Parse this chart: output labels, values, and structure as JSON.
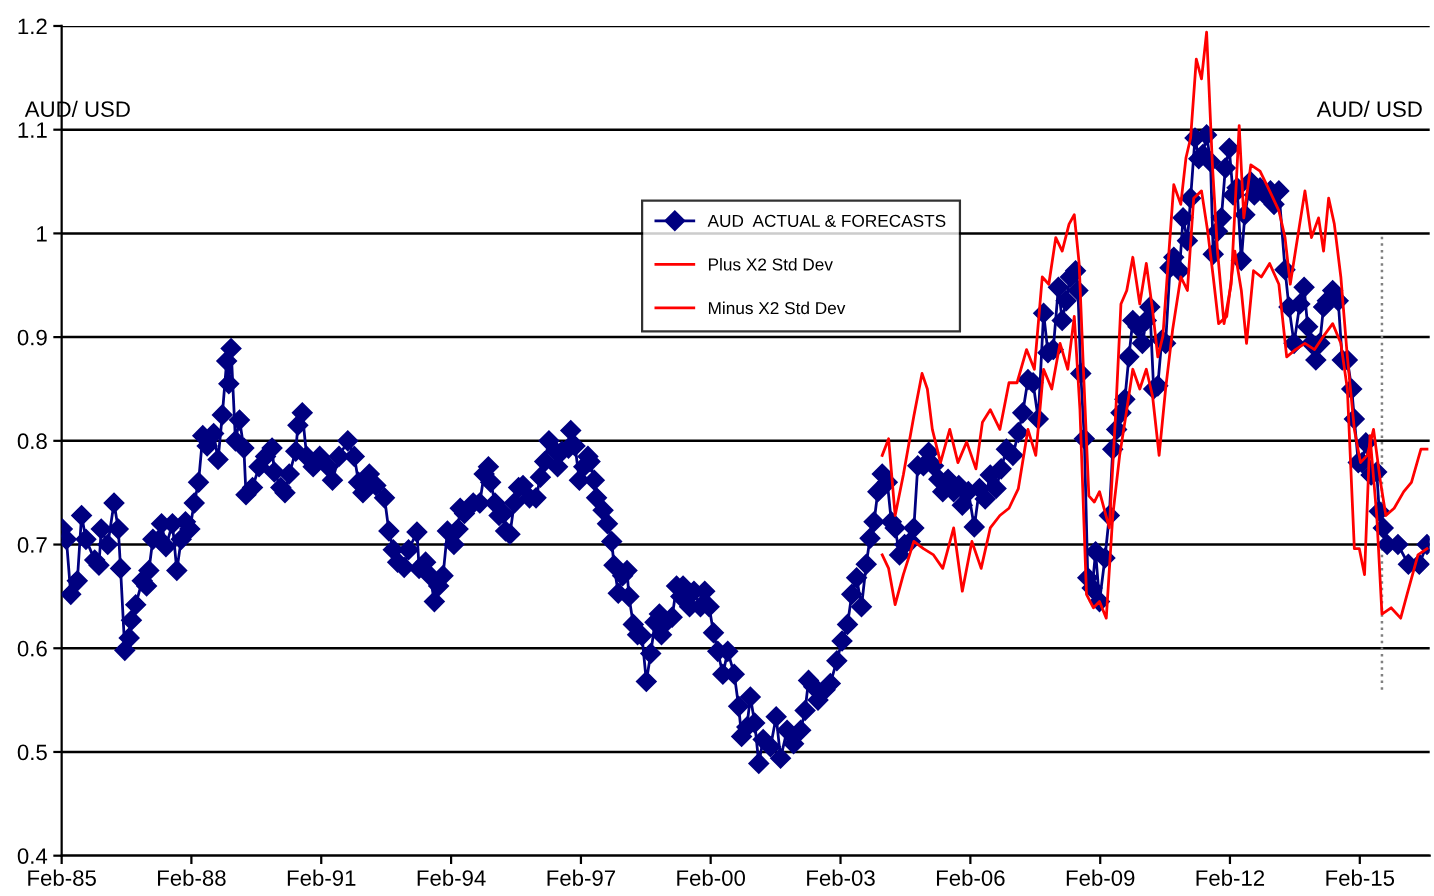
{
  "chart_data": {
    "type": "line",
    "ylim": [
      0.4,
      1.2
    ],
    "yticks": [
      0.4,
      0.5,
      0.6,
      0.7,
      0.8,
      0.9,
      1,
      1.1,
      1.2
    ],
    "xlim": [
      "1985-02-01",
      "2016-09-13"
    ],
    "xticks": [
      {
        "value": "1985-02-01",
        "label": "Feb-85"
      },
      {
        "value": "1988-02-01",
        "label": "Feb-88"
      },
      {
        "value": "1991-02-01",
        "label": "Feb-91"
      },
      {
        "value": "1994-02-01",
        "label": "Feb-94"
      },
      {
        "value": "1997-02-01",
        "label": "Feb-97"
      },
      {
        "value": "2000-02-01",
        "label": "Feb-00"
      },
      {
        "value": "2003-02-01",
        "label": "Feb-03"
      },
      {
        "value": "2006-02-01",
        "label": "Feb-06"
      },
      {
        "value": "2009-02-01",
        "label": "Feb-09"
      },
      {
        "value": "2012-02-01",
        "label": "Feb-12"
      },
      {
        "value": "2015-02-01",
        "label": "Feb-15"
      }
    ],
    "grid": "y",
    "legend": "top center",
    "annotations": [
      "AUD/ USD",
      "AUD/ USD"
    ],
    "ref_lines": [
      {
        "axis": "x",
        "value": "2015-08-07",
        "color": "#808080",
        "line_style": "dotted"
      }
    ],
    "series": [
      {
        "name": "AUD  ACTUAL & FORECASTS",
        "color": "#000080",
        "marker": "diamond",
        "line_style": "solid",
        "x": [
          "1985-02-07",
          "1985-03-13",
          "1985-04-19",
          "1985-06-13",
          "1985-07-19",
          "1985-08-25",
          "1985-11-07",
          "1985-12-13",
          "1986-01-01",
          "1986-02-25",
          "1986-04-19",
          "1986-05-25",
          "1986-06-13",
          "1986-07-19",
          "1986-08-25",
          "1986-09-13",
          "1986-10-19",
          "1986-12-13",
          "1987-01-19",
          "1987-02-07",
          "1987-03-13",
          "1987-05-07",
          "1987-05-25",
          "1987-07-01",
          "1987-08-25",
          "1987-10-01",
          "1987-11-07",
          "1987-12-13",
          "1988-01-19",
          "1988-02-25",
          "1988-04-01",
          "1988-05-07",
          "1988-06-13",
          "1988-08-07",
          "1988-09-13",
          "1988-10-19",
          "1988-11-25",
          "1988-12-13",
          "1989-01-01",
          "1989-02-07",
          "1989-03-13",
          "1989-04-19",
          "1989-05-07",
          "1989-07-01",
          "1989-08-25",
          "1989-10-19",
          "1989-12-13",
          "1990-01-01",
          "1990-02-25",
          "1990-04-01",
          "1990-05-07",
          "1990-07-01",
          "1990-07-19",
          "1990-08-25",
          "1990-10-01",
          "1990-11-25",
          "1991-01-19",
          "1991-04-01",
          "1991-05-07",
          "1991-07-01",
          "1991-09-13",
          "1991-11-07",
          "1991-12-13",
          "1992-01-19",
          "1992-03-13",
          "1992-05-07",
          "1992-07-19",
          "1992-08-25",
          "1992-10-01",
          "1992-11-07",
          "1993-01-01",
          "1993-02-07",
          "1993-04-19",
          "1993-05-07",
          "1993-07-01",
          "1993-08-07",
          "1993-09-13",
          "1993-10-19",
          "1993-11-25",
          "1994-01-01",
          "1994-02-25",
          "1994-04-01",
          "1994-04-19",
          "1994-05-25",
          "1994-08-07",
          "1994-10-01",
          "1994-11-07",
          "1994-12-13",
          "1995-01-01",
          "1995-02-07",
          "1995-03-13",
          "1995-04-19",
          "1995-05-07",
          "1995-06-13",
          "1995-07-19",
          "1995-08-25",
          "1995-10-01",
          "1995-11-25",
          "1996-01-19",
          "1996-02-25",
          "1996-04-01",
          "1996-05-07",
          "1996-07-01",
          "1996-07-19",
          "1996-08-25",
          "1996-10-19",
          "1996-11-07",
          "1996-12-13",
          "1997-01-19",
          "1997-02-25",
          "1997-04-01",
          "1997-04-19",
          "1997-05-25",
          "1997-06-13",
          "1997-08-07",
          "1997-09-13",
          "1997-10-19",
          "1997-11-07",
          "1997-12-13",
          "1998-01-19",
          "1998-02-25",
          "1998-03-13",
          "1998-04-19",
          "1998-05-25",
          "1998-07-01",
          "1998-08-07",
          "1998-09-13",
          "1998-10-19",
          "1998-11-25",
          "1998-12-13",
          "1999-01-19",
          "1999-03-13",
          "1999-04-19",
          "1999-05-25",
          "1999-06-13",
          "1999-08-07",
          "1999-09-13",
          "1999-11-07",
          "1999-12-13",
          "2000-01-19",
          "2000-02-25",
          "2000-04-01",
          "2000-05-14",
          "2000-06-24",
          "2000-08-18",
          "2000-09-24",
          "2000-10-19",
          "2000-12-02",
          "2001-01-01",
          "2001-02-07",
          "2001-03-13",
          "2001-04-19",
          "2001-06-20",
          "2001-08-07",
          "2001-09-13",
          "2001-11-07",
          "2002-01-01",
          "2002-03-02",
          "2002-04-08",
          "2002-05-07",
          "2002-06-20",
          "2002-07-26",
          "2002-09-24",
          "2002-11-07",
          "2003-01-01",
          "2003-02-14",
          "2003-04-01",
          "2003-05-07",
          "2003-06-17",
          "2003-07-28",
          "2003-09-06",
          "2003-10-08",
          "2003-11-11",
          "2003-12-13",
          "2004-01-19",
          "2004-03-02",
          "2004-04-05",
          "2004-05-07",
          "2004-06-13",
          "2004-07-26",
          "2004-09-13",
          "2004-10-12",
          "2004-11-14",
          "2005-01-01",
          "2005-02-14",
          "2005-03-27",
          "2005-05-11",
          "2005-06-13",
          "2005-07-28",
          "2005-09-13",
          "2005-10-26",
          "2005-11-25",
          "2006-01-15",
          "2006-03-06",
          "2006-04-19",
          "2006-06-06",
          "2006-07-19",
          "2006-09-06",
          "2006-10-19",
          "2006-12-02",
          "2007-01-26",
          "2007-03-13",
          "2007-04-19",
          "2007-06-02",
          "2007-07-15",
          "2007-08-28",
          "2007-10-12",
          "2007-11-18",
          "2008-01-01",
          "2008-02-14",
          "2008-03-17",
          "2008-04-19",
          "2008-05-25",
          "2008-07-08",
          "2008-07-28",
          "2008-08-21",
          "2008-09-20",
          "2008-10-19",
          "2008-11-25",
          "2008-12-24",
          "2009-01-26",
          "2009-03-13",
          "2009-04-19",
          "2009-05-18",
          "2009-06-20",
          "2009-07-26",
          "2009-08-28",
          "2009-10-01",
          "2009-11-03",
          "2009-12-17",
          "2010-01-23",
          "2010-02-25",
          "2010-03-27",
          "2010-04-28",
          "2010-06-02",
          "2010-07-05",
          "2010-08-07",
          "2010-09-13",
          "2010-10-15",
          "2010-12-02",
          "2011-01-01",
          "2011-02-07",
          "2011-03-06",
          "2011-04-12",
          "2011-05-14",
          "2011-06-17",
          "2011-07-19",
          "2011-08-21",
          "2011-09-13",
          "2011-10-19",
          "2011-11-21",
          "2011-12-24",
          "2012-01-26",
          "2012-02-28",
          "2012-04-01",
          "2012-05-07",
          "2012-06-06",
          "2012-07-23",
          "2012-08-25",
          "2012-10-12",
          "2012-11-25",
          "2013-01-08",
          "2013-02-07",
          "2013-03-20",
          "2013-05-11",
          "2013-06-13",
          "2013-07-26",
          "2013-09-13",
          "2013-10-19",
          "2013-11-18",
          "2013-12-20",
          "2014-01-26",
          "2014-02-28",
          "2014-04-01",
          "2014-05-03",
          "2014-06-17",
          "2014-08-03",
          "2014-09-06",
          "2014-10-19",
          "2014-11-25",
          "2014-12-17",
          "2015-01-19",
          "2015-02-21",
          "2015-03-24",
          "2015-05-07",
          "2015-06-24",
          "2015-07-15",
          "2015-08-18",
          "2015-09-20",
          "2015-12-20",
          "2016-03-17",
          "2016-06-17",
          "2016-08-21"
        ],
        "values": [
          0.715,
          0.705,
          0.652,
          0.665,
          0.728,
          0.705,
          0.685,
          0.68,
          0.715,
          0.7,
          0.74,
          0.715,
          0.677,
          0.598,
          0.61,
          0.627,
          0.642,
          0.665,
          0.66,
          0.675,
          0.705,
          0.705,
          0.72,
          0.698,
          0.72,
          0.675,
          0.705,
          0.722,
          0.715,
          0.74,
          0.76,
          0.805,
          0.795,
          0.807,
          0.782,
          0.825,
          0.877,
          0.855,
          0.889,
          0.8,
          0.82,
          0.793,
          0.748,
          0.755,
          0.775,
          0.785,
          0.793,
          0.77,
          0.755,
          0.75,
          0.768,
          0.79,
          0.815,
          0.827,
          0.785,
          0.775,
          0.785,
          0.775,
          0.762,
          0.785,
          0.8,
          0.785,
          0.76,
          0.75,
          0.768,
          0.757,
          0.745,
          0.713,
          0.695,
          0.683,
          0.678,
          0.695,
          0.712,
          0.677,
          0.683,
          0.67,
          0.645,
          0.66,
          0.67,
          0.713,
          0.7,
          0.715,
          0.735,
          0.73,
          0.74,
          0.74,
          0.768,
          0.775,
          0.76,
          0.74,
          0.728,
          0.73,
          0.713,
          0.71,
          0.74,
          0.755,
          0.757,
          0.745,
          0.745,
          0.765,
          0.78,
          0.8,
          0.79,
          0.775,
          0.79,
          0.793,
          0.81,
          0.795,
          0.762,
          0.775,
          0.785,
          0.78,
          0.762,
          0.745,
          0.733,
          0.72,
          0.703,
          0.68,
          0.653,
          0.67,
          0.675,
          0.65,
          0.623,
          0.613,
          0.612,
          0.568,
          0.595,
          0.625,
          0.633,
          0.613,
          0.625,
          0.63,
          0.66,
          0.65,
          0.66,
          0.64,
          0.655,
          0.64,
          0.655,
          0.64,
          0.615,
          0.597,
          0.575,
          0.597,
          0.575,
          0.544,
          0.515,
          0.524,
          0.553,
          0.528,
          0.489,
          0.512,
          0.505,
          0.534,
          0.494,
          0.521,
          0.508,
          0.521,
          0.54,
          0.569,
          0.563,
          0.55,
          0.56,
          0.566,
          0.588,
          0.607,
          0.623,
          0.652,
          0.668,
          0.64,
          0.681,
          0.706,
          0.722,
          0.751,
          0.768,
          0.76,
          0.722,
          0.716,
          0.69,
          0.7,
          0.703,
          0.716,
          0.776,
          0.776,
          0.789,
          0.776,
          0.763,
          0.751,
          0.763,
          0.751,
          0.757,
          0.738,
          0.751,
          0.717,
          0.754,
          0.744,
          0.767,
          0.754,
          0.773,
          0.792,
          0.786,
          0.808,
          0.827,
          0.859,
          0.856,
          0.821,
          0.923,
          0.885,
          0.888,
          0.948,
          0.916,
          0.935,
          0.958,
          0.964,
          0.945,
          0.865,
          0.802,
          0.668,
          0.658,
          0.693,
          0.645,
          0.687,
          0.728,
          0.792,
          0.811,
          0.827,
          0.84,
          0.881,
          0.916,
          0.91,
          0.894,
          0.916,
          0.929,
          0.85,
          0.853,
          0.897,
          0.894,
          0.967,
          0.977,
          0.964,
          1.015,
          0.993,
          1.034,
          1.092,
          1.072,
          1.076,
          1.095,
          1.069,
          0.98,
          1.002,
          1.015,
          1.063,
          1.082,
          1.037,
          1.044,
          0.974,
          1.018,
          1.05,
          1.037,
          1.044,
          1.037,
          1.041,
          1.028,
          1.041,
          0.965,
          0.929,
          0.894,
          0.932,
          0.948,
          0.91,
          0.894,
          0.878,
          0.894,
          0.929,
          0.935,
          0.945,
          0.935,
          0.878,
          0.878,
          0.85,
          0.821,
          0.779,
          0.779,
          0.798,
          0.767,
          0.77,
          0.732,
          0.716,
          0.7,
          0.7,
          0.681,
          0.681,
          0.7
        ]
      },
      {
        "name": "Plus X2 Std Dev",
        "color": "#ff0000",
        "marker": "none",
        "line_style": "solid",
        "x": [
          "2004-01-19",
          "2004-03-13",
          "2004-05-07",
          "2004-07-15",
          "2004-10-12",
          "2004-12-20",
          "2005-02-03",
          "2005-03-17",
          "2005-05-25",
          "2005-08-11",
          "2005-10-19",
          "2006-01-01",
          "2006-03-20",
          "2006-05-14",
          "2006-07-19",
          "2006-10-08",
          "2006-12-24",
          "2007-03-02",
          "2007-05-21",
          "2007-07-26",
          "2007-10-01",
          "2007-11-25",
          "2008-01-23",
          "2008-03-17",
          "2008-05-14",
          "2008-06-27",
          "2008-08-07",
          "2008-09-17",
          "2008-10-28",
          "2008-12-13",
          "2009-01-26",
          "2009-04-19",
          "2009-06-13",
          "2009-07-26",
          "2009-09-13",
          "2009-11-03",
          "2010-01-01",
          "2010-02-25",
          "2010-04-19",
          "2010-06-02",
          "2010-07-15",
          "2010-08-28",
          "2010-10-15",
          "2010-12-13",
          "2011-01-26",
          "2011-03-06",
          "2011-04-23",
          "2011-06-06",
          "2011-07-19",
          "2011-09-06",
          "2011-10-19",
          "2011-12-13",
          "2012-02-11",
          "2012-04-19",
          "2012-05-28",
          "2012-07-26",
          "2012-10-12",
          "2013-01-01",
          "2013-03-20",
          "2013-05-11",
          "2013-06-24",
          "2013-08-07",
          "2013-10-26",
          "2013-12-20",
          "2014-02-18",
          "2014-04-01",
          "2014-05-14",
          "2014-07-01",
          "2014-08-25",
          "2014-10-19",
          "2014-12-17",
          "2015-02-07",
          "2015-04-05",
          "2015-05-28",
          "2015-07-26",
          "2015-09-09",
          "2015-11-18",
          "2016-02-07",
          "2016-04-12",
          "2016-07-01",
          "2016-08-21"
        ],
        "values": [
          0.786,
          0.802,
          0.728,
          0.767,
          0.824,
          0.865,
          0.85,
          0.811,
          0.779,
          0.811,
          0.779,
          0.799,
          0.773,
          0.818,
          0.83,
          0.811,
          0.856,
          0.856,
          0.888,
          0.869,
          0.958,
          0.951,
          0.996,
          0.983,
          1.009,
          1.018,
          0.971,
          0.856,
          0.747,
          0.741,
          0.751,
          0.716,
          0.83,
          0.932,
          0.945,
          0.977,
          0.932,
          0.971,
          0.926,
          0.881,
          0.901,
          0.971,
          1.047,
          1.028,
          1.073,
          1.092,
          1.168,
          1.149,
          1.194,
          1.066,
          0.983,
          0.913,
          0.951,
          1.104,
          1.015,
          1.066,
          1.06,
          1.041,
          1.022,
          0.996,
          0.951,
          0.983,
          1.041,
          0.996,
          1.015,
          0.983,
          1.034,
          1.009,
          0.958,
          0.881,
          0.811,
          0.779,
          0.786,
          0.811,
          0.76,
          0.728,
          0.735,
          0.751,
          0.76,
          0.792,
          0.792
        ]
      },
      {
        "name": "Minus X2 Std Dev",
        "color": "#ff0000",
        "marker": "none",
        "line_style": "solid",
        "x": [
          "2004-01-19",
          "2004-03-13",
          "2004-05-07",
          "2004-07-15",
          "2004-10-12",
          "2005-01-01",
          "2005-03-27",
          "2005-06-13",
          "2005-09-13",
          "2005-11-25",
          "2006-02-14",
          "2006-05-03",
          "2006-07-19",
          "2006-10-08",
          "2006-12-24",
          "2007-03-13",
          "2007-06-02",
          "2007-08-07",
          "2007-10-12",
          "2007-12-20",
          "2008-02-28",
          "2008-05-03",
          "2008-06-27",
          "2008-08-14",
          "2008-10-08",
          "2008-12-06",
          "2009-01-26",
          "2009-03-24",
          "2009-05-18",
          "2009-07-15",
          "2009-09-13",
          "2009-11-03",
          "2010-01-01",
          "2010-02-25",
          "2010-04-19",
          "2010-06-13",
          "2010-08-07",
          "2010-10-05",
          "2010-12-13",
          "2011-02-07",
          "2011-04-01",
          "2011-06-06",
          "2011-07-28",
          "2011-09-13",
          "2011-10-28",
          "2012-01-05",
          "2012-03-13",
          "2012-05-07",
          "2012-06-20",
          "2012-08-18",
          "2012-10-23",
          "2013-01-01",
          "2013-03-20",
          "2013-05-25",
          "2013-08-07",
          "2013-10-26",
          "2014-01-15",
          "2014-04-01",
          "2014-06-17",
          "2014-08-25",
          "2014-10-19",
          "2014-12-17",
          "2015-01-28",
          "2015-03-13",
          "2015-04-28",
          "2015-06-24",
          "2015-08-07",
          "2015-10-23",
          "2016-01-12",
          "2016-03-06",
          "2016-06-06",
          "2016-08-21"
        ],
        "values": [
          0.69,
          0.677,
          0.642,
          0.671,
          0.703,
          0.696,
          0.69,
          0.677,
          0.716,
          0.655,
          0.703,
          0.677,
          0.716,
          0.728,
          0.735,
          0.754,
          0.811,
          0.786,
          0.869,
          0.85,
          0.894,
          0.869,
          0.92,
          0.83,
          0.652,
          0.639,
          0.645,
          0.629,
          0.728,
          0.786,
          0.83,
          0.869,
          0.85,
          0.869,
          0.843,
          0.786,
          0.85,
          0.907,
          0.958,
          0.945,
          1.034,
          1.041,
          1.002,
          0.958,
          0.913,
          0.92,
          0.983,
          0.945,
          0.894,
          0.964,
          0.958,
          0.971,
          0.951,
          0.881,
          0.888,
          0.894,
          0.888,
          0.901,
          0.913,
          0.894,
          0.85,
          0.696,
          0.696,
          0.671,
          0.805,
          0.728,
          0.633,
          0.639,
          0.629,
          0.652,
          0.69,
          0.696
        ]
      }
    ]
  }
}
